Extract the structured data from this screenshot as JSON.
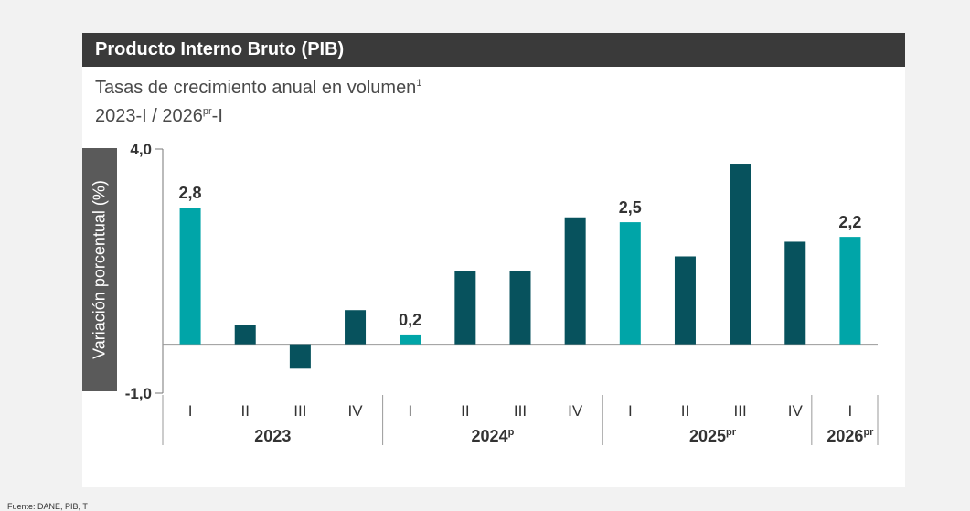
{
  "header": {
    "title": "Producto Interno Bruto (PIB)"
  },
  "subtitle": {
    "line1": "Tasas de crecimiento anual en volumen",
    "line1_sup": "1",
    "line2_a": "2023-I / 2026",
    "line2_sup": "pr",
    "line2_b": "-I"
  },
  "source": "Fuente: DANE, PIB, T",
  "colors": {
    "highlight": "#00a5a8",
    "standard": "#07525d",
    "axis": "#777777",
    "text": "#333333"
  },
  "chart_data": {
    "type": "bar",
    "title": "",
    "ylabel": "Variación porcentual (%)",
    "xlabel": "",
    "ylim": [
      -1.0,
      4.0
    ],
    "yticks": [
      "4,0",
      "-1,0"
    ],
    "categories": [
      "I",
      "II",
      "III",
      "IV",
      "I",
      "II",
      "III",
      "IV",
      "I",
      "II",
      "III",
      "IV",
      "I"
    ],
    "values": [
      2.8,
      0.4,
      -0.5,
      0.7,
      0.2,
      1.5,
      1.5,
      2.6,
      2.5,
      1.8,
      3.7,
      2.1,
      2.2
    ],
    "highlighted": [
      true,
      false,
      false,
      false,
      true,
      false,
      false,
      false,
      true,
      false,
      false,
      false,
      true
    ],
    "data_labels": [
      "2,8",
      "",
      "",
      "",
      "0,2",
      "",
      "",
      "",
      "2,5",
      "",
      "",
      "",
      "2,2"
    ],
    "groups": [
      {
        "label": "2023",
        "sup": "",
        "start": 0,
        "end": 3
      },
      {
        "label": "2024",
        "sup": "p",
        "start": 4,
        "end": 7
      },
      {
        "label": "2025",
        "sup": "pr",
        "start": 8,
        "end": 11
      },
      {
        "label": "2026",
        "sup": "pr",
        "start": 12,
        "end": 12
      }
    ]
  }
}
